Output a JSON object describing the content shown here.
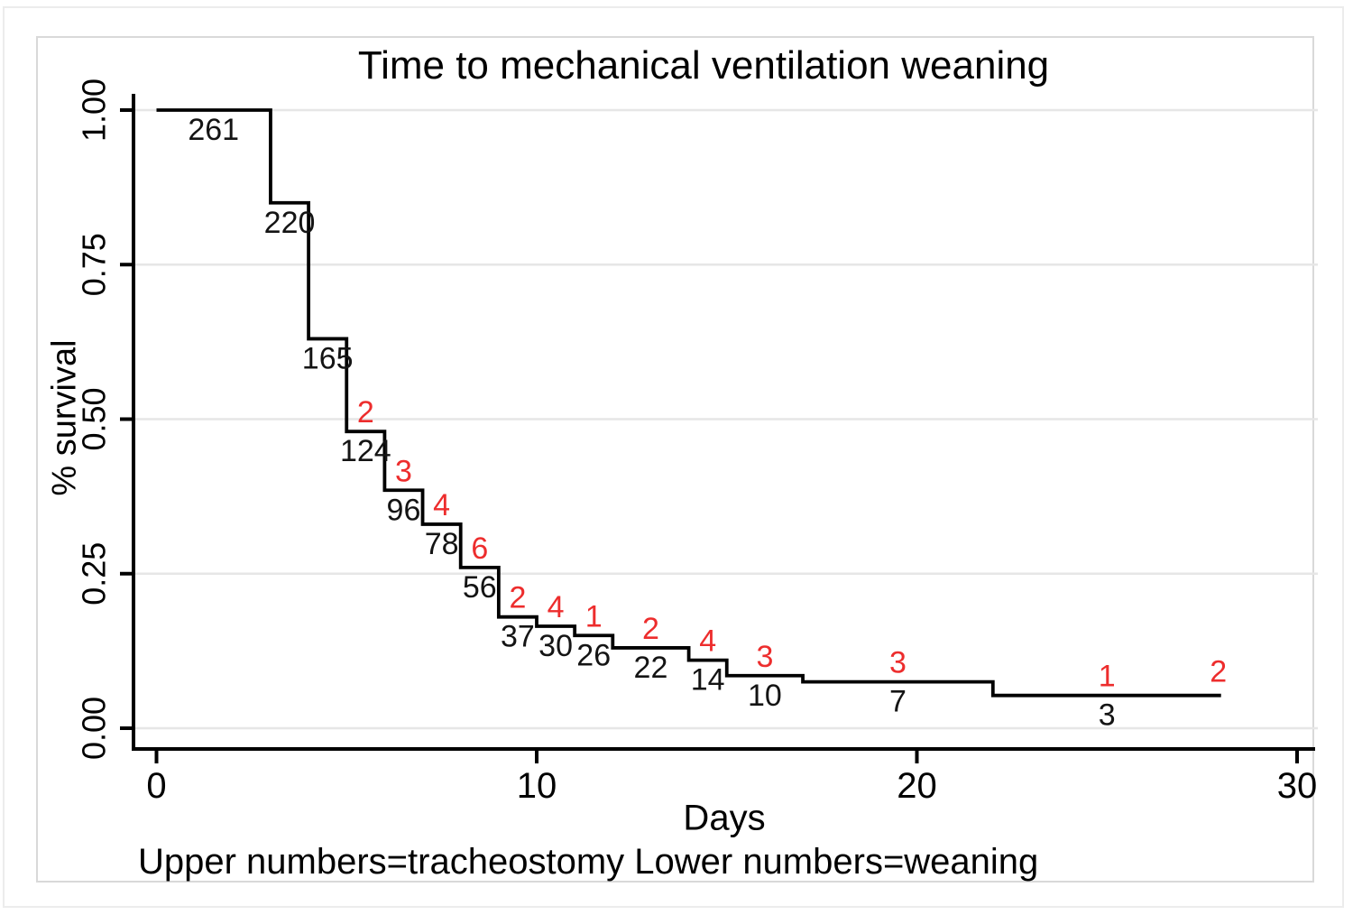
{
  "chart_data": {
    "type": "line",
    "subtype": "kaplan-meier-step-curve",
    "title": "Time to mechanical ventilation weaning",
    "xlabel": "Days",
    "ylabel": "% survival",
    "footnote": "Upper numbers=tracheostomy Lower numbers=weaning",
    "xlim": [
      0,
      30.5
    ],
    "ylim": [
      0,
      1
    ],
    "xticks": [
      0,
      10,
      20,
      30
    ],
    "yticks": [
      {
        "value": 0,
        "label": "0.00"
      },
      {
        "value": 0.25,
        "label": "0.25"
      },
      {
        "value": 0.5,
        "label": "0.50"
      },
      {
        "value": 0.75,
        "label": "0.75"
      },
      {
        "value": 1,
        "label": "1.00"
      }
    ],
    "grid": "horizontal",
    "legend": "none",
    "curve_color": "#000000",
    "grid_color": "#e6e6e6",
    "upper_number_color": "#ed2d2d",
    "lower_number_color": "#141414",
    "upper_numbers_meaning": "tracheostomy",
    "lower_numbers_meaning": "weaning",
    "end_day": 28,
    "end_upper_number": 2,
    "steps": [
      {
        "from_day": 0,
        "to_day": 3,
        "survival": 1.0,
        "lower_number": 261,
        "upper_number": null
      },
      {
        "from_day": 3,
        "to_day": 4,
        "survival": 0.85,
        "lower_number": 220,
        "upper_number": null
      },
      {
        "from_day": 4,
        "to_day": 5,
        "survival": 0.63,
        "lower_number": 165,
        "upper_number": null
      },
      {
        "from_day": 5,
        "to_day": 6,
        "survival": 0.48,
        "lower_number": 124,
        "upper_number": 2
      },
      {
        "from_day": 6,
        "to_day": 7,
        "survival": 0.385,
        "lower_number": 96,
        "upper_number": 3
      },
      {
        "from_day": 7,
        "to_day": 8,
        "survival": 0.33,
        "lower_number": 78,
        "upper_number": 4
      },
      {
        "from_day": 8,
        "to_day": 9,
        "survival": 0.26,
        "lower_number": 56,
        "upper_number": 6
      },
      {
        "from_day": 9,
        "to_day": 10,
        "survival": 0.18,
        "lower_number": 37,
        "upper_number": 2
      },
      {
        "from_day": 10,
        "to_day": 11,
        "survival": 0.165,
        "lower_number": 30,
        "upper_number": 4
      },
      {
        "from_day": 11,
        "to_day": 12,
        "survival": 0.15,
        "lower_number": 26,
        "upper_number": 1
      },
      {
        "from_day": 12,
        "to_day": 14,
        "survival": 0.13,
        "lower_number": 22,
        "upper_number": 2
      },
      {
        "from_day": 14,
        "to_day": 15,
        "survival": 0.11,
        "lower_number": 14,
        "upper_number": 4
      },
      {
        "from_day": 15,
        "to_day": 17,
        "survival": 0.085,
        "lower_number": 10,
        "upper_number": 3
      },
      {
        "from_day": 17,
        "to_day": 22,
        "survival": 0.075,
        "lower_number": 7,
        "upper_number": 3
      },
      {
        "from_day": 22,
        "to_day": 28,
        "survival": 0.053,
        "lower_number": 3,
        "upper_number": 1
      }
    ]
  }
}
